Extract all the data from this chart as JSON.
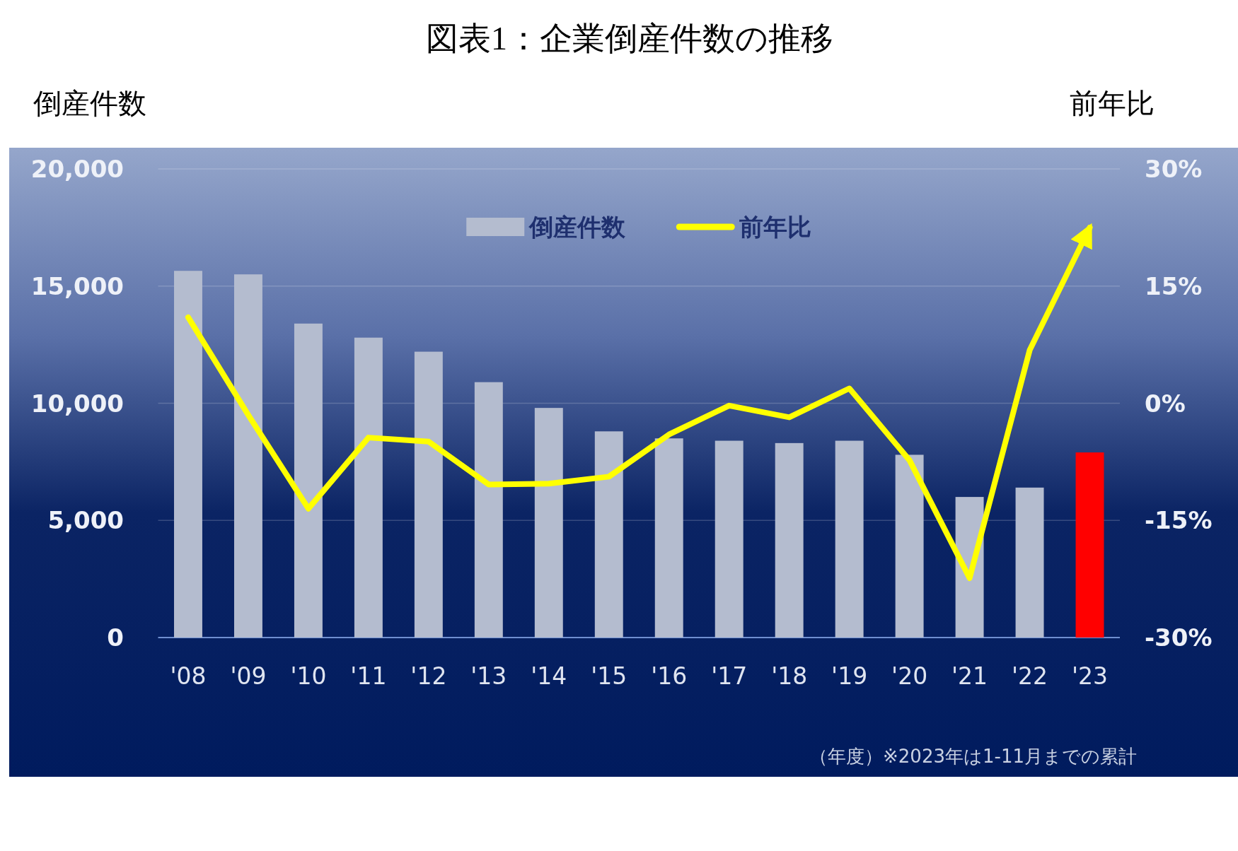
{
  "chart_data": {
    "type": "bar",
    "title": "図表1：企業倒産件数の推移",
    "ylabel": "倒産件数",
    "y2label": "前年比",
    "categories": [
      "'08",
      "'09",
      "'10",
      "'11",
      "'12",
      "'13",
      "'14",
      "'15",
      "'16",
      "'17",
      "'18",
      "'19",
      "'20",
      "'21",
      "'22",
      "'23"
    ],
    "series": [
      {
        "name": "倒産件数",
        "colors": [
          "#b4bccf",
          "#b4bccf",
          "#b4bccf",
          "#b4bccf",
          "#b4bccf",
          "#b4bccf",
          "#b4bccf",
          "#b4bccf",
          "#b4bccf",
          "#b4bccf",
          "#b4bccf",
          "#b4bccf",
          "#b4bccf",
          "#b4bccf",
          "#b4bccf",
          "#ff0000"
        ],
        "values": [
          15650,
          15500,
          13400,
          12800,
          12200,
          10900,
          9800,
          8800,
          8500,
          8400,
          8300,
          8400,
          7800,
          6000,
          6400,
          7900
        ]
      },
      {
        "name": "前年比",
        "type": "line",
        "axis": "y2",
        "color": "#ffff00",
        "values": [
          11,
          -1.5,
          -13.5,
          -4.4,
          -4.9,
          -10.4,
          -10.3,
          -9.4,
          -4,
          -0.3,
          -1.8,
          1.9,
          -7.3,
          -22.4,
          6.8,
          22.5
        ]
      }
    ],
    "ylim": [
      0,
      20000
    ],
    "yticks": [
      0,
      {
        "value": 5000,
        "label": "5,000"
      },
      {
        "value": 10000,
        "label": "10,000"
      },
      {
        "value": 15000,
        "label": "15,000"
      },
      {
        "value": 20000,
        "label": "20,000"
      }
    ],
    "y2lim": [
      -30,
      30
    ],
    "y2ticks": [
      {
        "value": -30,
        "label": "-30%"
      },
      {
        "value": -15,
        "label": "-15%"
      },
      {
        "value": 0,
        "label": "0%"
      },
      {
        "value": 15,
        "label": "15%"
      },
      {
        "value": 30,
        "label": "30%"
      }
    ],
    "grid": "y",
    "legend": "top",
    "annotations": [
      "（年度）※2023年は1-11月までの累計"
    ]
  }
}
